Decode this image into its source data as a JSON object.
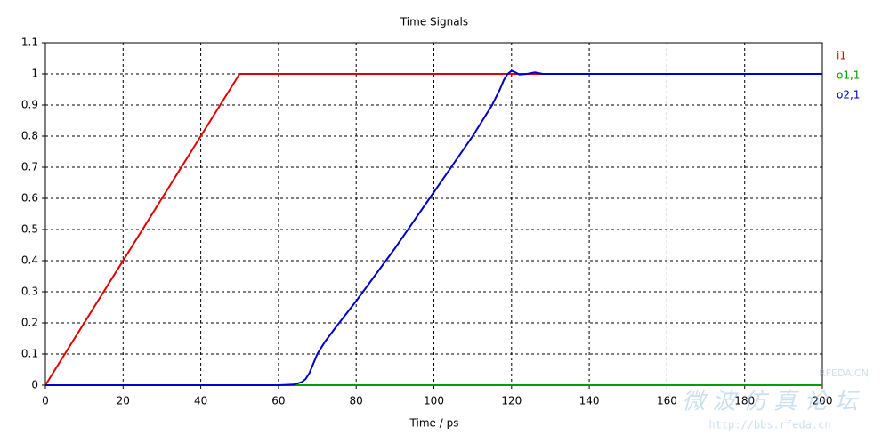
{
  "chart_data": {
    "type": "line",
    "title": "Time Signals",
    "x_label": "Time / ps",
    "xlim": [
      0,
      200
    ],
    "xticks": [
      0,
      20,
      40,
      60,
      80,
      100,
      120,
      140,
      160,
      180,
      200
    ],
    "ylim": [
      0,
      1.1
    ],
    "yticks": [
      0,
      0.1,
      0.2,
      0.3,
      0.4,
      0.5,
      0.6,
      0.7,
      0.8,
      0.9,
      1,
      1.1
    ],
    "grid": true,
    "legend": "right",
    "series": [
      {
        "name": "i1",
        "color": "#e00000",
        "x": [
          0,
          50,
          200
        ],
        "values": [
          0,
          1,
          1
        ]
      },
      {
        "name": "o1,1",
        "color": "#00a000",
        "x": [
          0,
          200
        ],
        "values": [
          0,
          0
        ]
      },
      {
        "name": "o2,1",
        "color": "#0000c8",
        "x": [
          0,
          60,
          64,
          66,
          67,
          68,
          69,
          70,
          72,
          75,
          80,
          90,
          100,
          110,
          115,
          117,
          118,
          119,
          120,
          121,
          122,
          124,
          126,
          128,
          130,
          200
        ],
        "values": [
          0,
          0,
          0.002,
          0.01,
          0.02,
          0.04,
          0.07,
          0.1,
          0.14,
          0.19,
          0.27,
          0.44,
          0.62,
          0.8,
          0.9,
          0.95,
          0.98,
          1.0,
          1.01,
          1.005,
          0.998,
          1.0,
          1.005,
          1.0,
          1.0,
          1.0
        ]
      }
    ],
    "watermark": [
      "RFEDA.CN",
      "微 波 仿 真 论 坛",
      "http://bbs.rfeda.cn"
    ]
  }
}
